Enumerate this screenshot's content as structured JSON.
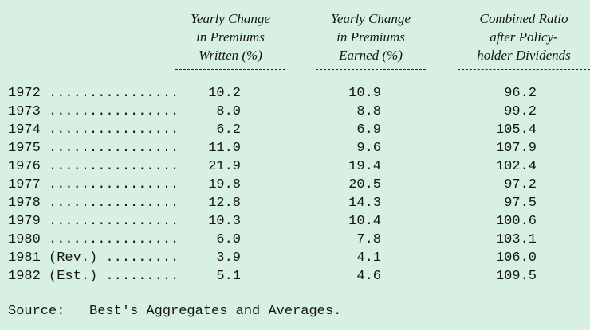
{
  "headers": [
    {
      "lines": [
        "Yearly Change",
        "in Premiums",
        "Written (%)"
      ]
    },
    {
      "lines": [
        "Yearly Change",
        "in Premiums",
        "Earned (%)"
      ]
    },
    {
      "lines": [
        "Combined Ratio",
        "after Policy-",
        "holder Dividends"
      ]
    }
  ],
  "rows": [
    {
      "label": "1972 ................",
      "written": "10.2",
      "earned": "10.9",
      "ratio": "96.2"
    },
    {
      "label": "1973 ................",
      "written": "8.0",
      "earned": "8.8",
      "ratio": "99.2"
    },
    {
      "label": "1974 ................",
      "written": "6.2",
      "earned": "6.9",
      "ratio": "105.4"
    },
    {
      "label": "1975 ................",
      "written": "11.0",
      "earned": "9.6",
      "ratio": "107.9"
    },
    {
      "label": "1976 ................",
      "written": "21.9",
      "earned": "19.4",
      "ratio": "102.4"
    },
    {
      "label": "1977 ................",
      "written": "19.8",
      "earned": "20.5",
      "ratio": "97.2"
    },
    {
      "label": "1978 ................",
      "written": "12.8",
      "earned": "14.3",
      "ratio": "97.5"
    },
    {
      "label": "1979 ................",
      "written": "10.3",
      "earned": "10.4",
      "ratio": "100.6"
    },
    {
      "label": "1980 ................",
      "written": "6.0",
      "earned": "7.8",
      "ratio": "103.1"
    },
    {
      "label": "1981 (Rev.) .........",
      "written": "3.9",
      "earned": "4.1",
      "ratio": "106.0"
    },
    {
      "label": "1982 (Est.) .........",
      "written": "5.1",
      "earned": "4.6",
      "ratio": "109.5"
    }
  ],
  "source": "Source:   Best's Aggregates and Averages."
}
